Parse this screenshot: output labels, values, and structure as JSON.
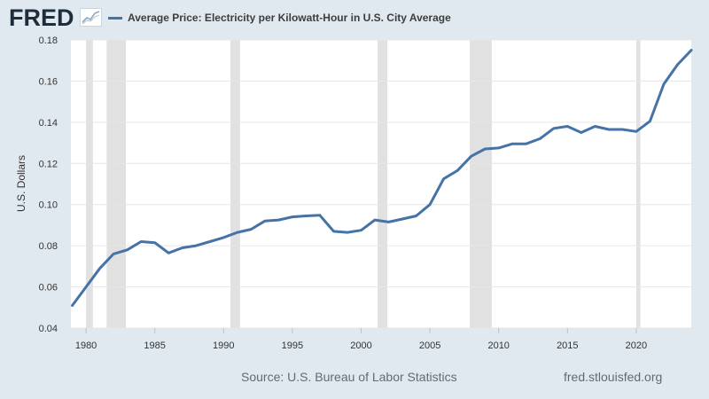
{
  "header": {
    "logo_text": "FRED",
    "logo_icon": "line-chart-icon",
    "legend_label": "Average Price: Electricity per Kilowatt-Hour in U.S. City Average",
    "legend_color": "#4572a7"
  },
  "footer": {
    "source": "Source: U.S. Bureau of Labor Statistics",
    "url": "fred.stlouisfed.org"
  },
  "colors": {
    "background": "#e1e9f0",
    "plot_background": "#ffffff",
    "line": "#4572a7",
    "recession": "#e1e1e1",
    "grid": "#e6e6e6"
  },
  "chart_data": {
    "type": "line",
    "ylabel": "U.S. Dollars",
    "xlabel": "",
    "xlim": [
      1978.9,
      2024.0
    ],
    "ylim": [
      0.04,
      0.18
    ],
    "x_ticks": [
      1980,
      1985,
      1990,
      1995,
      2000,
      2005,
      2010,
      2015,
      2020
    ],
    "y_ticks": [
      0.04,
      0.06,
      0.08,
      0.1,
      0.12,
      0.14,
      0.16,
      0.18
    ],
    "y_tick_labels": [
      "0.04",
      "0.06",
      "0.08",
      "0.10",
      "0.12",
      "0.14",
      "0.16",
      "0.18"
    ],
    "grid": true,
    "legend_position": "top-left",
    "recession_bands": [
      [
        1980.0,
        1980.5
      ],
      [
        1981.5,
        1982.9
      ],
      [
        1990.5,
        1991.2
      ],
      [
        2001.2,
        2001.9
      ],
      [
        2007.9,
        2009.5
      ],
      [
        2020.0,
        2020.3
      ]
    ],
    "series": [
      {
        "name": "Average Price: Electricity per Kilowatt-Hour in U.S. City Average",
        "color": "#4572a7",
        "x": [
          1979,
          1980,
          1981,
          1982,
          1983,
          1984,
          1985,
          1986,
          1987,
          1988,
          1989,
          1990,
          1991,
          1992,
          1993,
          1994,
          1995,
          1996,
          1997,
          1998,
          1999,
          2000,
          2001,
          2002,
          2003,
          2004,
          2005,
          2006,
          2007,
          2008,
          2009,
          2010,
          2011,
          2012,
          2013,
          2014,
          2015,
          2016,
          2017,
          2018,
          2019,
          2020,
          2021,
          2022,
          2023,
          2024
        ],
        "values": [
          0.051,
          0.06,
          0.069,
          0.076,
          0.078,
          0.082,
          0.0815,
          0.0765,
          0.079,
          0.08,
          0.082,
          0.084,
          0.0865,
          0.088,
          0.092,
          0.0925,
          0.094,
          0.0945,
          0.0948,
          0.087,
          0.0865,
          0.0875,
          0.0925,
          0.0915,
          0.093,
          0.0945,
          0.1,
          0.1125,
          0.1165,
          0.1235,
          0.127,
          0.1275,
          0.1295,
          0.1295,
          0.132,
          0.137,
          0.138,
          0.135,
          0.138,
          0.1365,
          0.1365,
          0.1355,
          0.1405,
          0.1585,
          0.168,
          0.175
        ]
      }
    ]
  }
}
